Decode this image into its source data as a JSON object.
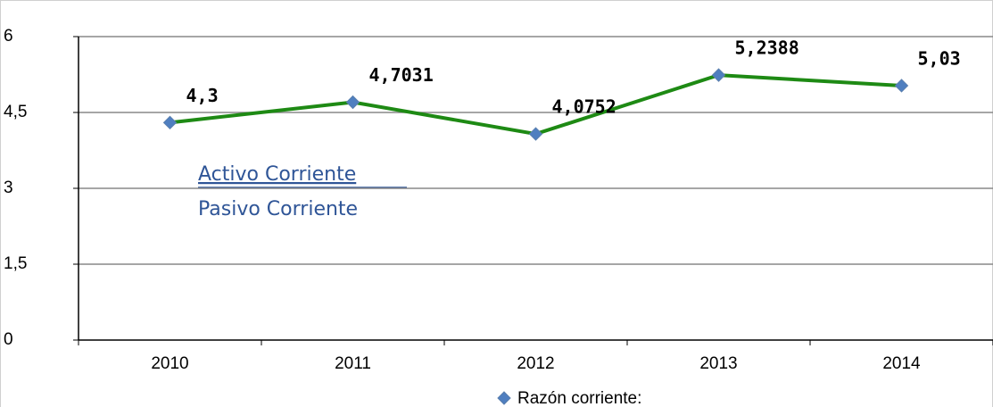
{
  "chart_data": {
    "type": "line",
    "categories": [
      "2010",
      "2011",
      "2012",
      "2013",
      "2014"
    ],
    "series": [
      {
        "name": "Razón corriente:",
        "color": "#1e8a14",
        "marker_color": "#4f7fc0",
        "values": [
          4.3,
          4.7031,
          4.0752,
          5.2388,
          5.03
        ],
        "value_labels": [
          "4,3",
          "4,7031",
          "4,0752",
          "5,2388",
          "5,03"
        ]
      }
    ],
    "ylim": [
      0,
      6
    ],
    "yticks": [
      0,
      {
        "value": 1.5,
        "label": "1,5"
      },
      3,
      {
        "value": 4.5,
        "label": "4,5"
      },
      6
    ],
    "grid": true,
    "legend": "bottom",
    "annotations": [
      "Activo Corriente",
      "Pasivo Corriente"
    ]
  }
}
